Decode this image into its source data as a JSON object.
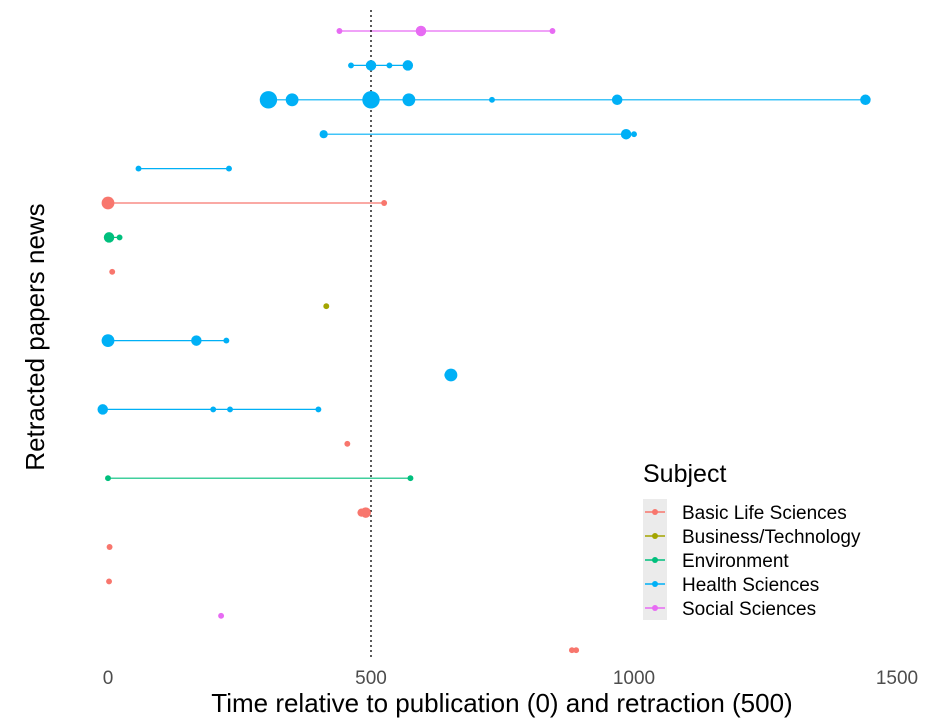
{
  "chart_data": {
    "type": "scatter",
    "title": "",
    "xlabel": "Time relative to publication (0) and retraction (500)",
    "ylabel": "Retracted papers news",
    "xlim": [
      -20,
      1500
    ],
    "x_ticks": [
      0,
      500,
      1000,
      1500
    ],
    "x_tick_labels": [
      "0",
      "500",
      "1000",
      "1500"
    ],
    "reference_line_x": 500,
    "grid": false,
    "legend": {
      "title": "Subject",
      "position": "bottom-right",
      "entries": [
        {
          "name": "Basic Life Sciences",
          "color": "#F8766D"
        },
        {
          "name": "Business/Technology",
          "color": "#A3A500"
        },
        {
          "name": "Environment",
          "color": "#00BF7D"
        },
        {
          "name": "Health Sciences",
          "color": "#00B0F6"
        },
        {
          "name": "Social Sciences",
          "color": "#E76BF3"
        }
      ]
    },
    "rows": [
      {
        "subject": "Social Sciences",
        "points": [
          {
            "x": 440,
            "size": 1
          },
          {
            "x": 595,
            "size": 3
          },
          {
            "x": 845,
            "size": 1
          }
        ]
      },
      {
        "subject": "Health Sciences",
        "points": [
          {
            "x": 462,
            "size": 1
          },
          {
            "x": 500,
            "size": 3
          },
          {
            "x": 535,
            "size": 1
          },
          {
            "x": 570,
            "size": 3
          }
        ]
      },
      {
        "subject": "Health Sciences",
        "points": [
          {
            "x": 305,
            "size": 6
          },
          {
            "x": 350,
            "size": 4
          },
          {
            "x": 500,
            "size": 6
          },
          {
            "x": 572,
            "size": 4
          },
          {
            "x": 730,
            "size": 1
          },
          {
            "x": 968,
            "size": 3
          },
          {
            "x": 1440,
            "size": 3
          }
        ]
      },
      {
        "subject": "Health Sciences",
        "points": [
          {
            "x": 410,
            "size": 2
          },
          {
            "x": 985,
            "size": 3
          },
          {
            "x": 1000,
            "size": 1
          }
        ]
      },
      {
        "subject": "Health Sciences",
        "points": [
          {
            "x": 58,
            "size": 1
          },
          {
            "x": 230,
            "size": 1
          }
        ]
      },
      {
        "subject": "Basic Life Sciences",
        "points": [
          {
            "x": 0,
            "size": 4
          },
          {
            "x": 525,
            "size": 1
          }
        ]
      },
      {
        "subject": "Environment",
        "points": [
          {
            "x": 2,
            "size": 3
          },
          {
            "x": 22,
            "size": 1
          }
        ]
      },
      {
        "subject": "Basic Life Sciences",
        "points": [
          {
            "x": 8,
            "size": 1
          }
        ]
      },
      {
        "subject": "Business/Technology",
        "points": [
          {
            "x": 415,
            "size": 1
          }
        ]
      },
      {
        "subject": "Health Sciences",
        "points": [
          {
            "x": 0,
            "size": 4
          },
          {
            "x": 168,
            "size": 3
          },
          {
            "x": 225,
            "size": 1
          }
        ]
      },
      {
        "subject": "Health Sciences",
        "points": [
          {
            "x": 645,
            "size": 1
          },
          {
            "x": 652,
            "size": 4
          }
        ]
      },
      {
        "subject": "Health Sciences",
        "points": [
          {
            "x": -10,
            "size": 3
          },
          {
            "x": 200,
            "size": 1
          },
          {
            "x": 232,
            "size": 1
          },
          {
            "x": 400,
            "size": 1
          }
        ]
      },
      {
        "subject": "Basic Life Sciences",
        "points": [
          {
            "x": 455,
            "size": 1
          }
        ]
      },
      {
        "subject": "Environment",
        "points": [
          {
            "x": 0,
            "size": 1
          },
          {
            "x": 575,
            "size": 1
          }
        ]
      },
      {
        "subject": "Basic Life Sciences",
        "points": [
          {
            "x": 482,
            "size": 2
          },
          {
            "x": 490,
            "size": 3
          }
        ]
      },
      {
        "subject": "Basic Life Sciences",
        "points": [
          {
            "x": 3,
            "size": 1
          }
        ]
      },
      {
        "subject": "Basic Life Sciences",
        "points": [
          {
            "x": 2,
            "size": 1
          }
        ]
      },
      {
        "subject": "Social Sciences",
        "points": [
          {
            "x": 215,
            "size": 1
          }
        ]
      },
      {
        "subject": "Basic Life Sciences",
        "points": [
          {
            "x": 882,
            "size": 1
          },
          {
            "x": 890,
            "size": 1
          }
        ]
      }
    ]
  }
}
